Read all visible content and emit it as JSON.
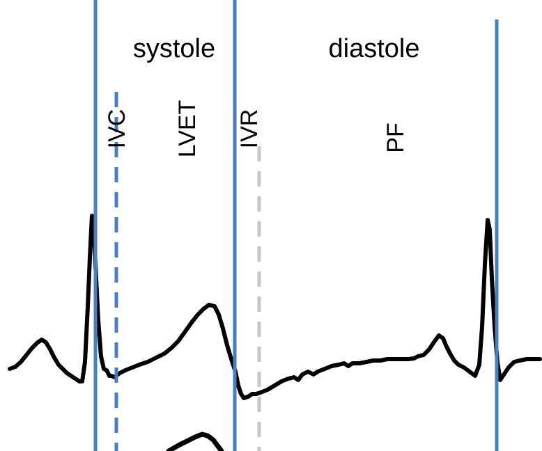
{
  "phases": {
    "systole": "systole",
    "diastole": "diastole"
  },
  "intervals": {
    "ivc": "IVC",
    "lvet": "LVET",
    "ivr": "IVR",
    "pf": "PF"
  },
  "colors": {
    "boundary_line": "#4A7EC0",
    "ivc_dashed_line": "#4A7EC0",
    "ivr_dashed_line": "#C8C8C8",
    "ecg_trace": "#000000",
    "text": "#000000"
  }
}
